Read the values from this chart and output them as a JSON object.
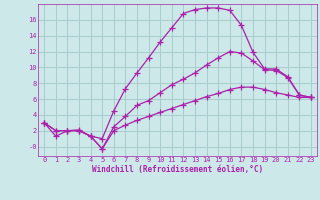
{
  "xlabel": "Windchill (Refroidissement éolien,°C)",
  "background_color": "#cde8e8",
  "grid_color": "#a8cccc",
  "line_color": "#aa22aa",
  "xlim": [
    -0.5,
    23.5
  ],
  "ylim": [
    -1.2,
    18.0
  ],
  "xticks": [
    0,
    1,
    2,
    3,
    4,
    5,
    6,
    7,
    8,
    9,
    10,
    11,
    12,
    13,
    14,
    15,
    16,
    17,
    18,
    19,
    20,
    21,
    22,
    23
  ],
  "yticks": [
    0,
    2,
    4,
    6,
    8,
    10,
    12,
    14,
    16
  ],
  "ytick_labels": [
    "-0",
    "2",
    "4",
    "6",
    "8",
    "10",
    "12",
    "14",
    "16"
  ],
  "curve1_x": [
    0,
    1,
    2,
    3,
    4,
    5,
    6,
    7,
    8,
    9,
    10,
    11,
    12,
    13,
    14,
    15,
    16,
    17,
    18,
    19,
    20,
    21,
    22,
    23
  ],
  "curve1_y": [
    3.0,
    1.3,
    2.0,
    2.1,
    1.3,
    1.0,
    4.5,
    7.3,
    9.3,
    11.2,
    13.2,
    15.0,
    16.8,
    17.3,
    17.5,
    17.5,
    17.2,
    15.3,
    11.9,
    9.8,
    9.8,
    8.8,
    6.5,
    6.2
  ],
  "curve2_x": [
    0,
    1,
    2,
    3,
    4,
    5,
    6,
    7,
    8,
    9,
    10,
    11,
    12,
    13,
    14,
    15,
    16,
    17,
    18,
    19,
    20,
    21,
    22,
    23
  ],
  "curve2_y": [
    3.0,
    2.0,
    2.0,
    2.0,
    1.3,
    -0.3,
    2.5,
    3.8,
    5.2,
    5.8,
    6.8,
    7.8,
    8.5,
    9.3,
    10.3,
    11.2,
    12.0,
    11.8,
    10.8,
    9.7,
    9.6,
    8.7,
    6.5,
    6.2
  ],
  "curve3_x": [
    0,
    1,
    2,
    3,
    4,
    5,
    6,
    7,
    8,
    9,
    10,
    11,
    12,
    13,
    14,
    15,
    16,
    17,
    18,
    19,
    20,
    21,
    22,
    23
  ],
  "curve3_y": [
    3.0,
    2.0,
    2.0,
    2.0,
    1.3,
    -0.3,
    2.0,
    2.7,
    3.3,
    3.8,
    4.3,
    4.8,
    5.3,
    5.8,
    6.3,
    6.7,
    7.2,
    7.5,
    7.5,
    7.2,
    6.8,
    6.5,
    6.2,
    6.2
  ]
}
